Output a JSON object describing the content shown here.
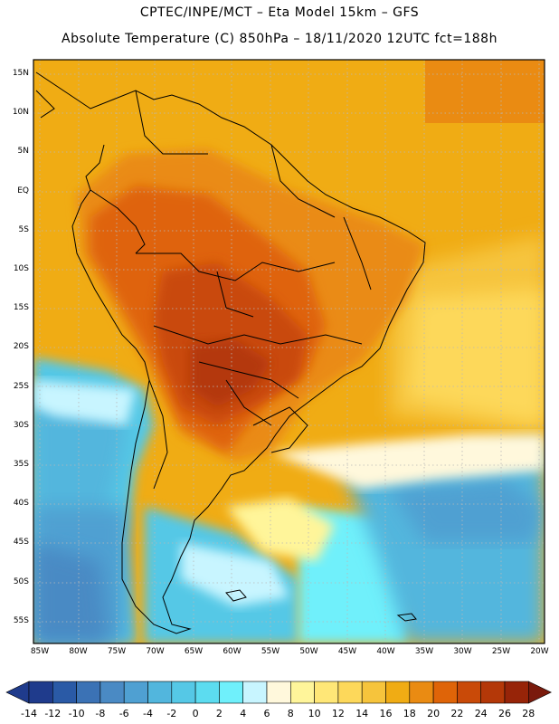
{
  "header": {
    "line1": "CPTEC/INPE/MCT –  Eta Model 15km – GFS",
    "line2": "Absolute Temperature (C) 850hPa – 18/11/2020 12UTC fct=188h"
  },
  "axes": {
    "lat_labels": [
      "15N",
      "10N",
      "5N",
      "EQ",
      "5S",
      "10S",
      "15S",
      "20S",
      "25S",
      "30S",
      "35S",
      "40S",
      "45S",
      "50S",
      "55S"
    ],
    "lon_labels": [
      "85W",
      "80W",
      "75W",
      "70W",
      "65W",
      "60W",
      "55W",
      "50W",
      "45W",
      "40W",
      "35W",
      "30W",
      "25W",
      "20W"
    ]
  },
  "colorbar": {
    "labels": [
      "-14",
      "-12",
      "-10",
      "-8",
      "-6",
      "-4",
      "-2",
      "0",
      "2",
      "4",
      "6",
      "8",
      "10",
      "12",
      "14",
      "16",
      "18",
      "20",
      "22",
      "24",
      "26",
      "28"
    ],
    "colors": [
      "#1f3b8c",
      "#2a5aa6",
      "#3b72b5",
      "#4a8ac4",
      "#4fa0d2",
      "#52b6dd",
      "#55c8e6",
      "#5cdcf0",
      "#6ff0fb",
      "#c8f5ff",
      "#fff8dc",
      "#fff59a",
      "#ffe777",
      "#fdd85a",
      "#f6c43c",
      "#f0ac14",
      "#ea8b12",
      "#df6408",
      "#c94a08",
      "#b43808",
      "#972408",
      "#7a1a0c"
    ]
  }
}
